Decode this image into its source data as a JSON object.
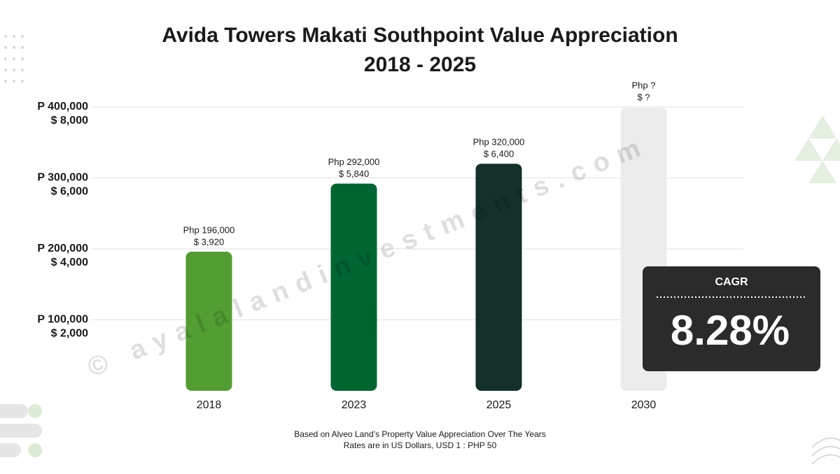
{
  "chart_data": {
    "type": "bar",
    "title": [
      "Avida Towers Makati Southpoint Value Appreciation",
      "2018 - 2025"
    ],
    "categories": [
      "2018",
      "2023",
      "2025",
      "2030"
    ],
    "values": [
      196000,
      292000,
      320000,
      null
    ],
    "value_labels": [
      "Php 196,000",
      "Php 292,000",
      "Php 320,000",
      "Php ?"
    ],
    "usd_values": [
      3920,
      5840,
      6400,
      null
    ],
    "usd_value_labels": [
      "$ 3,920",
      "$ 5,840",
      "$ 6,400",
      "$ ?"
    ],
    "colors": [
      "#529e33",
      "#006631",
      "#13302a",
      "#ececec"
    ],
    "ylim": [
      0,
      400000
    ],
    "yticks": [
      {
        "value": 100000,
        "label": "P 100,000"
      },
      {
        "value": 200000,
        "label": "P 200,000"
      },
      {
        "value": 300000,
        "label": "P 300,000"
      },
      {
        "value": 400000,
        "label": "P 400,000"
      }
    ],
    "y2lim": [
      0,
      8000
    ],
    "y2ticks": [
      {
        "value": 2000,
        "label": "$ 2,000"
      },
      {
        "value": 4000,
        "label": "$ 4,000"
      },
      {
        "value": 6000,
        "label": "$ 6,000"
      },
      {
        "value": 8000,
        "label": "$ 8,000"
      }
    ],
    "grid": true,
    "annotation": {
      "title": "CAGR",
      "value": 8.28,
      "label": "8.28%"
    },
    "notes": [
      "Based on Alveo Land’s Property Value Appreciation Over The Years",
      "Rates are in US Dollars, USD 1 : PHP 50"
    ],
    "watermark": "© ayalalandinvestments.com"
  }
}
